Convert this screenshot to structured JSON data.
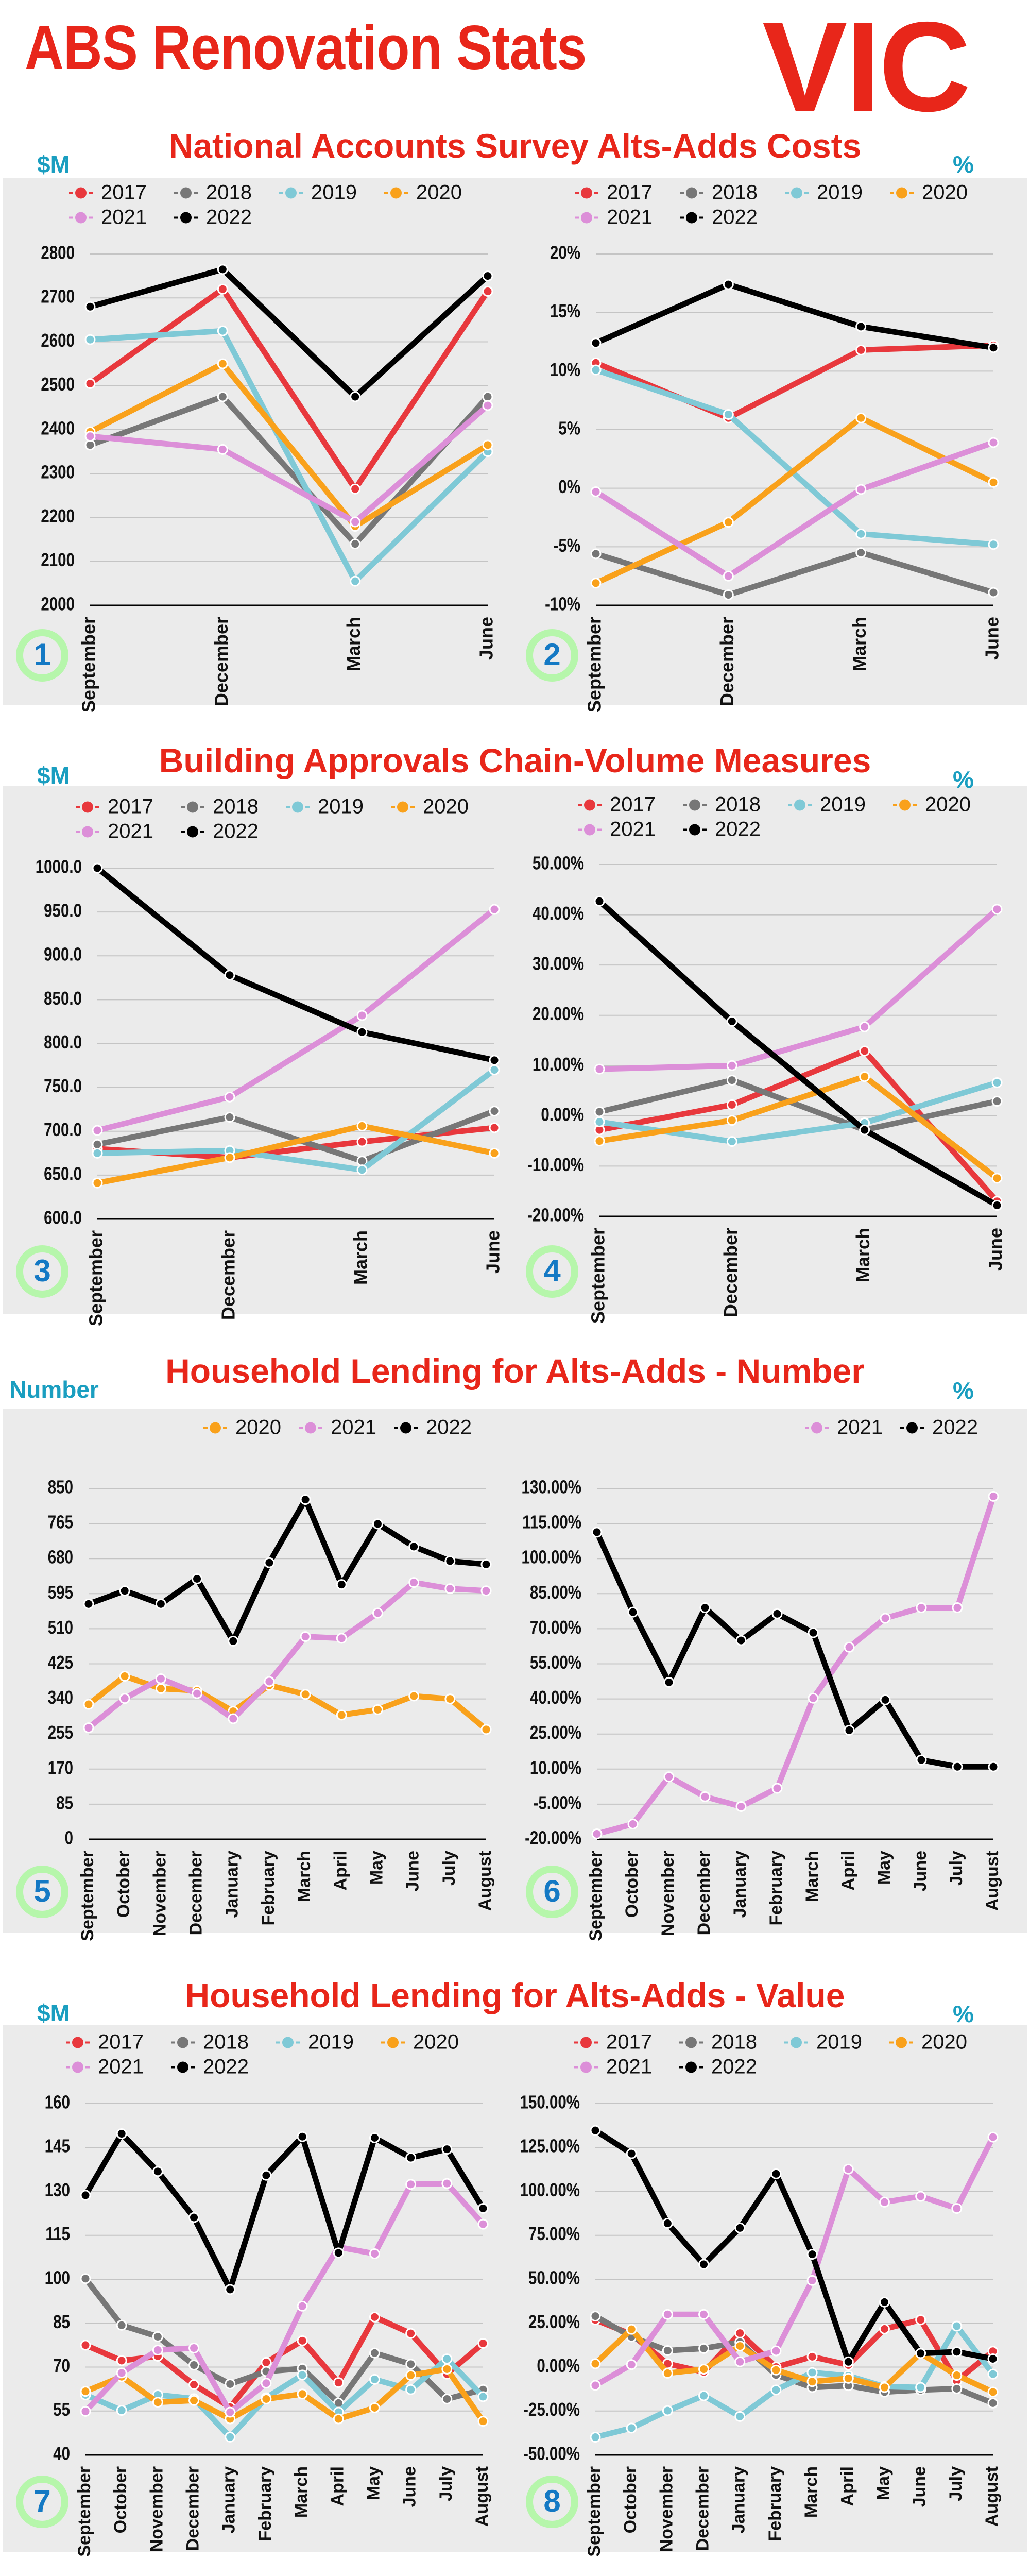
{
  "header": {
    "title": "ABS Renovation Stats",
    "state": "VIC"
  },
  "sections": [
    {
      "title": "National Accounts Survey Alts-Adds Costs",
      "left_unit": "$M",
      "right_unit": "%"
    },
    {
      "title": "Building Approvals Chain-Volume Measures",
      "left_unit": "$M",
      "right_unit": "%"
    },
    {
      "title": "Household Lending for Alts-Adds - Number",
      "left_unit": "Number",
      "right_unit": "%"
    },
    {
      "title": "Household Lending for Alts-Adds - Value",
      "left_unit": "$M",
      "right_unit": "%"
    }
  ],
  "colors": {
    "2017": "#e8383d",
    "2018": "#777777",
    "2019": "#7fc9d6",
    "2020": "#f9a11b",
    "2021": "#dc8fd8",
    "2022": "#000000"
  },
  "chart_data": [
    {
      "type": "line",
      "badge": "1",
      "ylim": [
        2000,
        2800
      ],
      "yticks": [
        "2000",
        "2100",
        "2200",
        "2300",
        "2400",
        "2500",
        "2600",
        "2700",
        "2800"
      ],
      "categories": [
        "September",
        "December",
        "March",
        "June"
      ],
      "series": [
        {
          "name": "2017",
          "values": [
            2505,
            2720,
            2265,
            2715
          ]
        },
        {
          "name": "2018",
          "values": [
            2365,
            2475,
            2140,
            2475
          ]
        },
        {
          "name": "2019",
          "values": [
            2605,
            2625,
            2055,
            2350
          ]
        },
        {
          "name": "2020",
          "values": [
            2395,
            2550,
            2180,
            2365
          ]
        },
        {
          "name": "2021",
          "values": [
            2385,
            2355,
            2190,
            2455
          ]
        },
        {
          "name": "2022",
          "values": [
            2680,
            2765,
            2475,
            2750
          ]
        }
      ],
      "legend": "top-left"
    },
    {
      "type": "line",
      "badge": "2",
      "ylim": [
        -10,
        20
      ],
      "yticks": [
        "-10%",
        "-5%",
        "0%",
        "5%",
        "10%",
        "15%",
        "20%"
      ],
      "categories": [
        "September",
        "December",
        "March",
        "June"
      ],
      "series": [
        {
          "name": "2017",
          "values": [
            10.7,
            6.0,
            11.8,
            12.2
          ]
        },
        {
          "name": "2018",
          "values": [
            -5.6,
            -9.1,
            -5.5,
            -8.9
          ]
        },
        {
          "name": "2019",
          "values": [
            10.1,
            6.3,
            -3.9,
            -4.8
          ]
        },
        {
          "name": "2020",
          "values": [
            -8.1,
            -2.9,
            6.0,
            0.5
          ]
        },
        {
          "name": "2021",
          "values": [
            -0.3,
            -7.5,
            -0.1,
            3.9
          ]
        },
        {
          "name": "2022",
          "values": [
            12.4,
            17.4,
            13.8,
            12.0
          ]
        }
      ],
      "legend": "top-left"
    },
    {
      "type": "line",
      "badge": "3",
      "ylim": [
        600,
        1000
      ],
      "yticks": [
        "600.0",
        "650.0",
        "700.0",
        "750.0",
        "800.0",
        "850.0",
        "900.0",
        "950.0",
        "1000.0"
      ],
      "categories": [
        "September",
        "December",
        "March",
        "June"
      ],
      "series": [
        {
          "name": "2017",
          "values": [
            680,
            670,
            688,
            704
          ]
        },
        {
          "name": "2018",
          "values": [
            685,
            716,
            666,
            723
          ]
        },
        {
          "name": "2019",
          "values": [
            675,
            678,
            656,
            770
          ]
        },
        {
          "name": "2020",
          "values": [
            641,
            670,
            706,
            675
          ]
        },
        {
          "name": "2021",
          "values": [
            701,
            739,
            832,
            953
          ]
        },
        {
          "name": "2022",
          "values": [
            1000,
            878,
            813,
            781
          ]
        }
      ],
      "legend": "top-left"
    },
    {
      "type": "line",
      "badge": "4",
      "ylim": [
        -20,
        50
      ],
      "yticks": [
        "-20.00%",
        "-10.00%",
        "0.00%",
        "10.00%",
        "20.00%",
        "30.00%",
        "40.00%",
        "50.00%"
      ],
      "categories": [
        "September",
        "December",
        "March",
        "June"
      ],
      "series": [
        {
          "name": "2017",
          "values": [
            -2.8,
            2.2,
            12.9,
            -17.0
          ]
        },
        {
          "name": "2018",
          "values": [
            0.8,
            7.1,
            -2.8,
            2.9
          ]
        },
        {
          "name": "2019",
          "values": [
            -1.2,
            -5.1,
            -1.4,
            6.6
          ]
        },
        {
          "name": "2020",
          "values": [
            -5.0,
            -0.9,
            7.8,
            -12.4
          ]
        },
        {
          "name": "2021",
          "values": [
            9.3,
            10.0,
            17.7,
            41.1
          ]
        },
        {
          "name": "2022",
          "values": [
            42.7,
            18.8,
            -2.8,
            -17.8
          ]
        }
      ],
      "legend": "top-left"
    },
    {
      "type": "line",
      "badge": "5",
      "ylim": [
        0,
        850
      ],
      "yticks": [
        "0",
        "85",
        "170",
        "255",
        "340",
        "425",
        "510",
        "595",
        "680",
        "765",
        "850"
      ],
      "categories": [
        "September",
        "October",
        "November",
        "December",
        "January",
        "February",
        "March",
        "April",
        "May",
        "June",
        "July",
        "August"
      ],
      "series": [
        {
          "name": "2020",
          "values": [
            327,
            395,
            365,
            360,
            310,
            373,
            351,
            301,
            314,
            347,
            340,
            266
          ]
        },
        {
          "name": "2021",
          "values": [
            270,
            341,
            389,
            353,
            292,
            382,
            491,
            487,
            548,
            622,
            607,
            602
          ]
        },
        {
          "name": "2022",
          "values": [
            570,
            602,
            570,
            631,
            480,
            670,
            823,
            617,
            764,
            709,
            674,
            666
          ]
        }
      ],
      "legend": "top-center"
    },
    {
      "type": "line",
      "badge": "6",
      "ylim": [
        -20,
        130
      ],
      "yticks": [
        "-20.00%",
        "-5.00%",
        "10.00%",
        "25.00%",
        "40.00%",
        "55.00%",
        "70.00%",
        "85.00%",
        "100.00%",
        "115.00%",
        "130.00%"
      ],
      "categories": [
        "September",
        "October",
        "November",
        "December",
        "January",
        "February",
        "March",
        "April",
        "May",
        "June",
        "July",
        "August"
      ],
      "series": [
        {
          "name": "2021",
          "values": [
            -17.7,
            -13.5,
            6.7,
            -1.8,
            -6.0,
            1.8,
            40.3,
            62.1,
            74.5,
            79.0,
            79.0,
            126.6
          ]
        },
        {
          "name": "2022",
          "values": [
            111.3,
            77.1,
            47.1,
            79.0,
            65.0,
            76.4,
            68.3,
            26.6,
            39.6,
            13.9,
            11.0,
            11.0
          ]
        }
      ],
      "legend": "top-right"
    },
    {
      "type": "line",
      "badge": "7",
      "ylim": [
        40,
        160
      ],
      "yticks": [
        "40",
        "55",
        "70",
        "85",
        "100",
        "115",
        "130",
        "145",
        "160"
      ],
      "categories": [
        "September",
        "October",
        "November",
        "December",
        "January",
        "February",
        "March",
        "April",
        "May",
        "June",
        "July",
        "August"
      ],
      "series": [
        {
          "name": "2017",
          "values": [
            77.5,
            72.2,
            73.7,
            64.0,
            56.3,
            71.6,
            79.0,
            64.7,
            87.1,
            81.5,
            67.6,
            78.1
          ]
        },
        {
          "name": "2018",
          "values": [
            100.2,
            84.3,
            80.4,
            70.7,
            64.2,
            68.5,
            69.5,
            57.7,
            74.8,
            71.0,
            59.1,
            62.3
          ]
        },
        {
          "name": "2019",
          "values": [
            60.5,
            55.2,
            60.5,
            59.2,
            46.1,
            59.5,
            67.3,
            54.6,
            65.8,
            62.3,
            72.8,
            59.9
          ]
        },
        {
          "name": "2020",
          "values": [
            61.7,
            66.7,
            58.0,
            58.6,
            52.3,
            59.1,
            60.8,
            52.3,
            56.1,
            67.2,
            69.3,
            51.5
          ]
        },
        {
          "name": "2021",
          "values": [
            54.9,
            68.0,
            75.8,
            76.5,
            54.6,
            64.5,
            90.8,
            111.0,
            108.7,
            132.4,
            132.7,
            118.8
          ]
        },
        {
          "name": "2022",
          "values": [
            128.7,
            149.7,
            136.8,
            121.1,
            96.5,
            135.5,
            148.7,
            109.0,
            148.3,
            141.5,
            144.4,
            124.2
          ]
        }
      ],
      "legend": "top-left"
    },
    {
      "type": "line",
      "badge": "8",
      "ylim": [
        -50,
        150
      ],
      "yticks": [
        "-50.00%",
        "-25.00%",
        "0.00%",
        "25.00%",
        "50.00%",
        "75.00%",
        "100.00%",
        "125.00%",
        "150.00%"
      ],
      "categories": [
        "September",
        "October",
        "November",
        "December",
        "January",
        "February",
        "March",
        "April",
        "May",
        "June",
        "July",
        "August"
      ],
      "series": [
        {
          "name": "2017",
          "values": [
            26.9,
            18.6,
            1.9,
            -2.8,
            19.3,
            0.0,
            5.9,
            1.2,
            21.7,
            26.9,
            -7.8,
            9.0
          ]
        },
        {
          "name": "2018",
          "values": [
            29.0,
            17.2,
            9.4,
            10.6,
            14.2,
            -4.5,
            -11.6,
            -10.6,
            -14.2,
            -13.0,
            -12.3,
            -20.5
          ]
        },
        {
          "name": "2019",
          "values": [
            -39.9,
            -34.7,
            -24.8,
            -16.3,
            -28.1,
            -13.0,
            -3.1,
            -5.0,
            -11.1,
            -11.6,
            23.3,
            -4.0
          ]
        },
        {
          "name": "2020",
          "values": [
            1.9,
            21.5,
            -3.5,
            -1.2,
            12.0,
            -1.7,
            -8.3,
            -6.4,
            -11.6,
            7.8,
            -4.7,
            -14.2
          ]
        },
        {
          "name": "2021",
          "values": [
            -10.4,
            1.4,
            30.0,
            30.0,
            3.0,
            9.2,
            49.3,
            112.7,
            93.9,
            97.2,
            90.3,
            130.9
          ]
        },
        {
          "name": "2022",
          "values": [
            134.7,
            121.5,
            81.8,
            58.5,
            79.2,
            110.0,
            64.2,
            3.0,
            37.0,
            7.8,
            8.7,
            4.7
          ]
        }
      ],
      "legend": "top-left"
    }
  ]
}
